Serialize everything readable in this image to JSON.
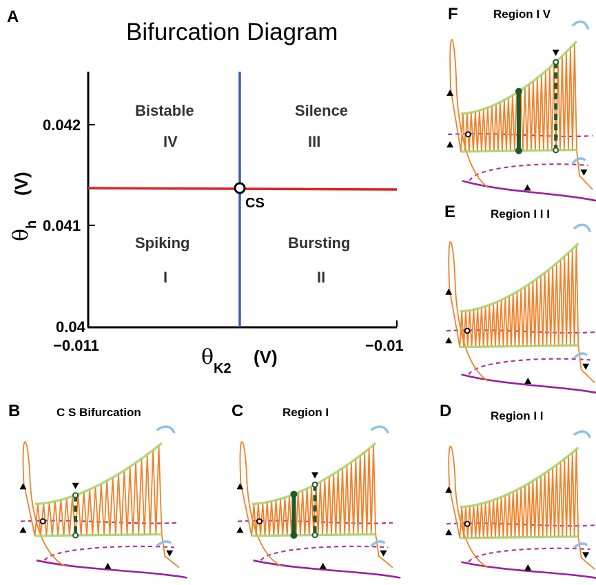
{
  "panel_a": {
    "letter": "A",
    "title": "Bifurcation Diagram",
    "x_axis": {
      "symbol": "θ",
      "subscript": "K2",
      "unit": "(V)",
      "ticks": [
        "−0.011",
        "−0.01"
      ]
    },
    "y_axis": {
      "symbol": "θ",
      "subscript": "h",
      "unit": "(V)",
      "ticks": [
        "0.042",
        "0.041",
        "0.04"
      ]
    },
    "regions": [
      {
        "name": "Bistable",
        "number": "IV"
      },
      {
        "name": "Silence",
        "number": "III"
      },
      {
        "name": "Spiking",
        "number": "I"
      },
      {
        "name": "Bursting",
        "number": "II"
      }
    ],
    "point_label": "CS",
    "colors": {
      "horizontal_line": "#e02020",
      "vertical_line": "#3a5fbf"
    }
  },
  "subpanels": {
    "b": {
      "letter": "B",
      "title": "C S Bifurcation"
    },
    "c": {
      "letter": "C",
      "title": "Region  I"
    },
    "d": {
      "letter": "D",
      "title": "Region  I I"
    },
    "e": {
      "letter": "E",
      "title": "Region I I I"
    },
    "f": {
      "letter": "F",
      "title": "Region  I V"
    }
  },
  "colors": {
    "orbit": "#f0822a",
    "manifold": "#a6d26a",
    "dashed": "#b0359a",
    "slow": "#9b1fa0",
    "cap": "#8ec2e8",
    "dark_green": "#1e5a2a"
  }
}
